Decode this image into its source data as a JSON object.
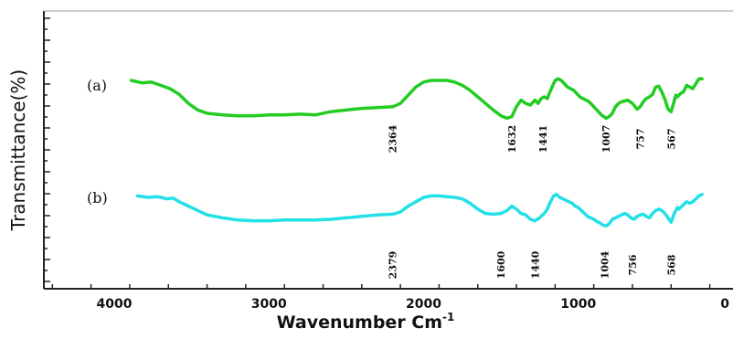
{
  "chart_data": {
    "type": "line",
    "title": "",
    "xlabel": "Wavenumber Cm",
    "xlabel_superscript": "-1",
    "ylabel": "Transmittance(%)",
    "xlim": [
      4400,
      0
    ],
    "x_reversed": true,
    "y_ticks_labeled": false,
    "x_ticks": [
      {
        "value": 4000,
        "label": "4000"
      },
      {
        "value": 3000,
        "label": "3000"
      },
      {
        "value": 2000,
        "label": "2000"
      },
      {
        "value": 1000,
        "label": "1000"
      },
      {
        "value": 0,
        "label": "0"
      }
    ],
    "series": [
      {
        "panel": "(a)",
        "color": "#22cc22",
        "x": [
          3890,
          3820,
          3760,
          3700,
          3640,
          3580,
          3520,
          3460,
          3400,
          3300,
          3200,
          3100,
          3000,
          2900,
          2800,
          2700,
          2600,
          2500,
          2400,
          2300,
          2200,
          2150,
          2100,
          2050,
          2000,
          1950,
          1900,
          1850,
          1800,
          1750,
          1700,
          1650,
          1600,
          1550,
          1500,
          1460,
          1430,
          1400,
          1370,
          1340,
          1310,
          1280,
          1260,
          1240,
          1220,
          1200,
          1190,
          1170,
          1150,
          1130,
          1110,
          1090,
          1070,
          1050,
          1030,
          1010,
          990,
          970,
          950,
          930,
          910,
          880,
          850,
          820,
          800,
          780,
          760,
          740,
          720,
          700,
          680,
          650,
          620,
          600,
          580,
          560,
          540,
          520,
          500,
          480,
          460,
          440,
          420,
          400,
          380,
          370,
          360,
          350,
          340,
          320,
          300,
          280,
          260,
          240,
          220,
          200
        ],
        "y": [
          0.8,
          0.77,
          0.78,
          0.74,
          0.7,
          0.63,
          0.52,
          0.44,
          0.4,
          0.38,
          0.37,
          0.37,
          0.38,
          0.38,
          0.39,
          0.38,
          0.42,
          0.44,
          0.46,
          0.47,
          0.48,
          0.52,
          0.62,
          0.72,
          0.78,
          0.8,
          0.8,
          0.8,
          0.78,
          0.74,
          0.68,
          0.6,
          0.52,
          0.44,
          0.37,
          0.34,
          0.36,
          0.48,
          0.56,
          0.52,
          0.5,
          0.56,
          0.52,
          0.58,
          0.6,
          0.58,
          0.63,
          0.72,
          0.8,
          0.82,
          0.8,
          0.76,
          0.72,
          0.7,
          0.68,
          0.64,
          0.6,
          0.58,
          0.56,
          0.54,
          0.5,
          0.44,
          0.38,
          0.34,
          0.36,
          0.4,
          0.48,
          0.52,
          0.54,
          0.55,
          0.56,
          0.52,
          0.45,
          0.48,
          0.54,
          0.58,
          0.6,
          0.63,
          0.72,
          0.73,
          0.66,
          0.57,
          0.45,
          0.42,
          0.55,
          0.62,
          0.6,
          0.62,
          0.64,
          0.66,
          0.74,
          0.72,
          0.7,
          0.76,
          0.82,
          0.82
        ]
      },
      {
        "panel": "(b)",
        "color": "#22e0e8",
        "x": [
          3850,
          3780,
          3720,
          3660,
          3620,
          3580,
          3540,
          3500,
          3460,
          3400,
          3300,
          3200,
          3100,
          3000,
          2900,
          2800,
          2700,
          2600,
          2500,
          2400,
          2300,
          2200,
          2150,
          2100,
          2050,
          2000,
          1950,
          1900,
          1850,
          1800,
          1750,
          1700,
          1650,
          1600,
          1550,
          1500,
          1460,
          1430,
          1400,
          1370,
          1340,
          1310,
          1280,
          1250,
          1220,
          1200,
          1180,
          1160,
          1140,
          1120,
          1100,
          1080,
          1060,
          1040,
          1020,
          1000,
          980,
          960,
          940,
          920,
          900,
          880,
          860,
          840,
          820,
          800,
          780,
          760,
          740,
          720,
          700,
          680,
          660,
          640,
          620,
          600,
          580,
          560,
          540,
          520,
          500,
          480,
          460,
          440,
          420,
          400,
          380,
          370,
          360,
          350,
          340,
          320,
          300,
          280,
          260,
          240,
          220,
          200
        ],
        "y": [
          0.82,
          0.8,
          0.81,
          0.78,
          0.79,
          0.74,
          0.7,
          0.66,
          0.62,
          0.56,
          0.52,
          0.49,
          0.48,
          0.48,
          0.49,
          0.49,
          0.49,
          0.5,
          0.52,
          0.54,
          0.56,
          0.57,
          0.6,
          0.68,
          0.74,
          0.8,
          0.82,
          0.82,
          0.81,
          0.8,
          0.78,
          0.72,
          0.64,
          0.58,
          0.57,
          0.58,
          0.62,
          0.68,
          0.64,
          0.58,
          0.56,
          0.5,
          0.48,
          0.52,
          0.58,
          0.64,
          0.74,
          0.82,
          0.84,
          0.8,
          0.78,
          0.76,
          0.74,
          0.72,
          0.68,
          0.66,
          0.62,
          0.58,
          0.54,
          0.52,
          0.5,
          0.47,
          0.45,
          0.42,
          0.41,
          0.44,
          0.5,
          0.52,
          0.54,
          0.56,
          0.58,
          0.56,
          0.52,
          0.5,
          0.54,
          0.56,
          0.57,
          0.54,
          0.52,
          0.58,
          0.62,
          0.64,
          0.62,
          0.58,
          0.52,
          0.46,
          0.58,
          0.62,
          0.66,
          0.64,
          0.66,
          0.7,
          0.74,
          0.72,
          0.74,
          0.78,
          0.82,
          0.84
        ]
      }
    ],
    "peak_labels": [
      {
        "panel": "(a)",
        "text": "2364",
        "x": 2200
      },
      {
        "panel": "(a)",
        "text": "1632",
        "x": 1430
      },
      {
        "panel": "(a)",
        "text": "1441",
        "x": 1230
      },
      {
        "panel": "(a)",
        "text": "1007",
        "x": 820
      },
      {
        "panel": "(a)",
        "text": "757",
        "x": 600
      },
      {
        "panel": "(a)",
        "text": "567",
        "x": 400
      },
      {
        "panel": "(b)",
        "text": "2379",
        "x": 2200
      },
      {
        "panel": "(b)",
        "text": "1600",
        "x": 1500
      },
      {
        "panel": "(b)",
        "text": "1440",
        "x": 1280
      },
      {
        "panel": "(b)",
        "text": "1004",
        "x": 830
      },
      {
        "panel": "(b)",
        "text": "756",
        "x": 650
      },
      {
        "panel": "(b)",
        "text": "568",
        "x": 400
      }
    ]
  }
}
